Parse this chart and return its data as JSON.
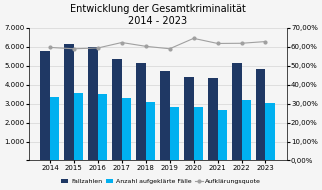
{
  "title": "Entwicklung der Gesamtkriminalität\n2014 - 2023",
  "years": [
    2014,
    2015,
    2016,
    2017,
    2018,
    2019,
    2020,
    2021,
    2022,
    2023
  ],
  "fallzahlen": [
    5780,
    6150,
    5980,
    5380,
    5150,
    4750,
    4420,
    4330,
    5130,
    4830
  ],
  "aufgeklaerte": [
    3350,
    3570,
    3510,
    3320,
    3100,
    2800,
    2800,
    2680,
    3180,
    3020
  ],
  "aufklaerungsquote": [
    0.597,
    0.59,
    0.594,
    0.623,
    0.603,
    0.59,
    0.645,
    0.618,
    0.619,
    0.628
  ],
  "bar_color_fall": "#1F3864",
  "bar_color_aufg": "#00B0F0",
  "line_color": "#A0A0A0",
  "ylim_left": [
    0,
    7000
  ],
  "ylim_right": [
    0.0,
    0.7
  ],
  "ylabel_left_ticks": [
    0,
    1000,
    2000,
    3000,
    4000,
    5000,
    6000,
    7000
  ],
  "ylabel_right_ticks": [
    0.0,
    0.1,
    0.2,
    0.3,
    0.4,
    0.5,
    0.6,
    0.7
  ],
  "legend_labels": [
    "Fallzahlen",
    "Anzahl aufgeklärte Fälle",
    "Aufklärungsquote"
  ],
  "background_color": "#f5f5f5",
  "title_fontsize": 7,
  "tick_fontsize": 5,
  "legend_fontsize": 4.5
}
